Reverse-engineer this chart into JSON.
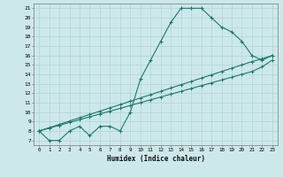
{
  "xlabel": "Humidex (Indice chaleur)",
  "bg_color": "#cde8ea",
  "line_color": "#1a7a6e",
  "grid_color": "#b0d4d8",
  "xlim": [
    -0.5,
    23.5
  ],
  "ylim": [
    6.5,
    21.5
  ],
  "yticks": [
    7,
    8,
    9,
    10,
    11,
    12,
    13,
    14,
    15,
    16,
    17,
    18,
    19,
    20,
    21
  ],
  "xticks": [
    0,
    1,
    2,
    3,
    4,
    5,
    6,
    7,
    8,
    9,
    10,
    11,
    12,
    13,
    14,
    15,
    16,
    17,
    18,
    19,
    20,
    21,
    22,
    23
  ],
  "xtick_labels": [
    "0",
    "1",
    "2",
    "3",
    "4",
    "5",
    "6",
    "7",
    "8",
    "9",
    "10",
    "11",
    "12",
    "13",
    "14",
    "15",
    "16",
    "17",
    "18",
    "19",
    "20",
    "21",
    "22",
    "23"
  ],
  "line1_x": [
    0,
    1,
    2,
    3,
    4,
    5,
    6,
    7,
    8,
    9,
    10,
    11,
    12,
    13,
    14,
    15,
    16,
    17,
    18,
    19,
    20,
    21,
    22,
    23
  ],
  "line1_y": [
    8,
    7,
    7,
    8,
    8.5,
    7.5,
    8.5,
    8.5,
    8,
    10,
    13.5,
    15.5,
    17.5,
    19.5,
    21,
    21,
    21,
    20,
    19,
    18.5,
    17.5,
    16,
    15.5,
    16
  ],
  "line2_x": [
    0,
    1,
    2,
    3,
    4,
    5,
    6,
    7,
    8,
    9,
    10,
    11,
    12,
    13,
    14,
    15,
    16,
    17,
    18,
    19,
    20,
    21,
    22,
    23
  ],
  "line2_y": [
    8,
    8.35,
    8.7,
    9.05,
    9.4,
    9.75,
    10.1,
    10.45,
    10.8,
    11.15,
    11.5,
    11.85,
    12.2,
    12.55,
    12.9,
    13.25,
    13.6,
    13.95,
    14.3,
    14.65,
    15.0,
    15.35,
    15.65,
    16.0
  ],
  "line3_x": [
    0,
    1,
    2,
    3,
    4,
    5,
    6,
    7,
    8,
    9,
    10,
    11,
    12,
    13,
    14,
    15,
    16,
    17,
    18,
    19,
    20,
    21,
    22,
    23
  ],
  "line3_y": [
    8,
    8.3,
    8.6,
    8.9,
    9.2,
    9.5,
    9.8,
    10.1,
    10.4,
    10.7,
    11.0,
    11.3,
    11.6,
    11.9,
    12.2,
    12.5,
    12.8,
    13.1,
    13.4,
    13.7,
    14.0,
    14.3,
    14.8,
    15.5
  ]
}
